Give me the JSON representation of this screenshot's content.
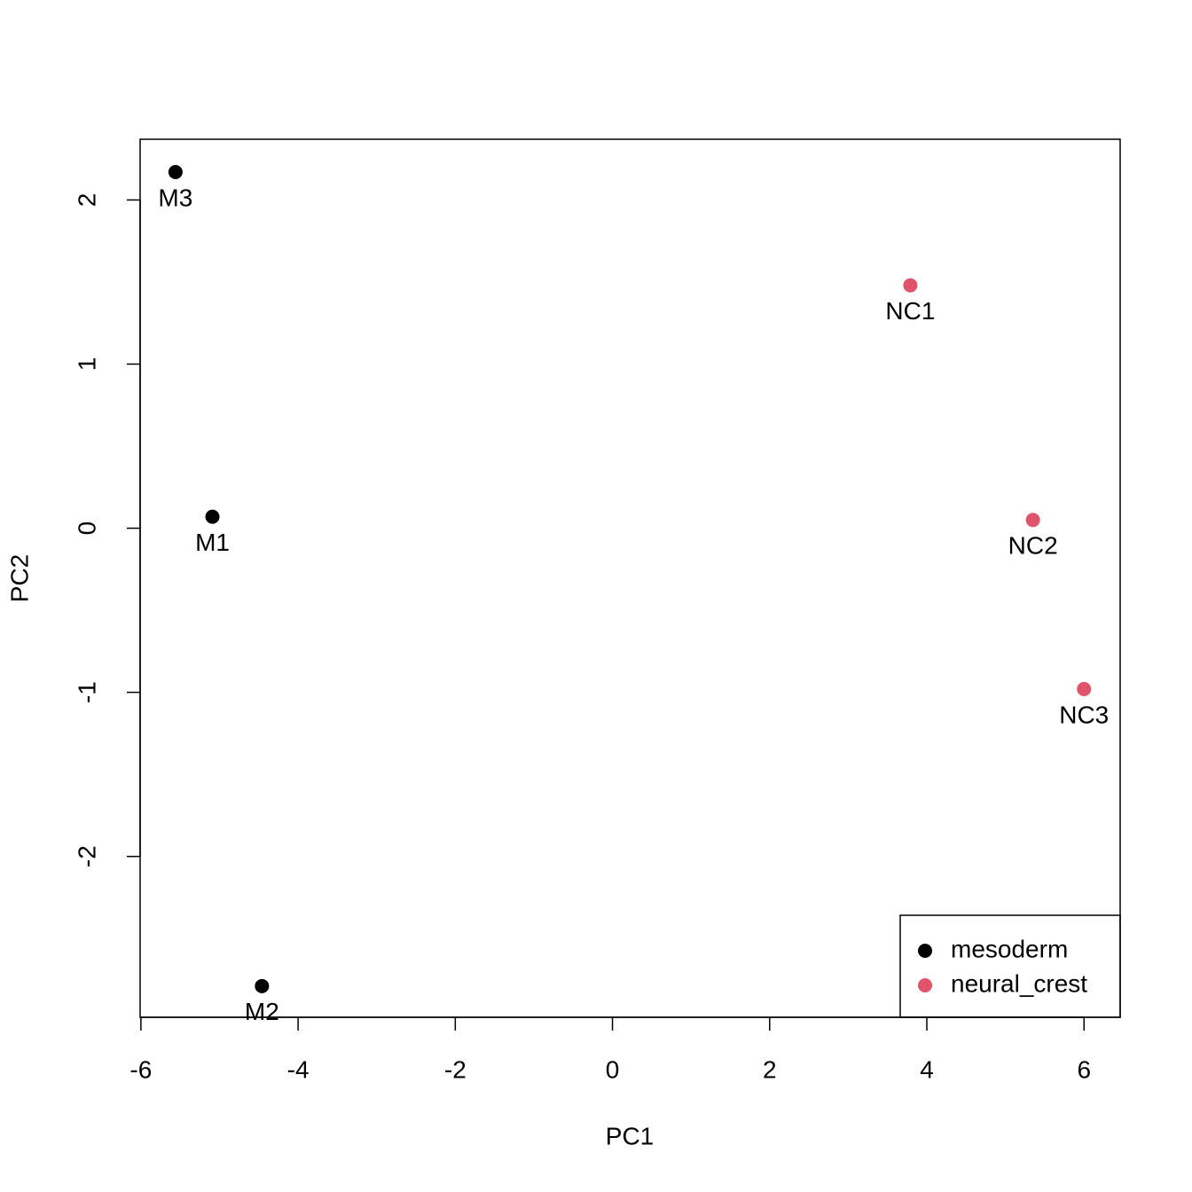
{
  "chart_data": {
    "type": "scatter",
    "xlabel": "PC1",
    "ylabel": "PC2",
    "xlim": [
      -6.01,
      6.46
    ],
    "ylim": [
      -2.98,
      2.37
    ],
    "xticks": [
      -6,
      -4,
      -2,
      0,
      2,
      4,
      6
    ],
    "yticks": [
      -2,
      -1,
      0,
      1,
      2
    ],
    "legend_position": "bottom-right",
    "series": [
      {
        "name": "mesoderm",
        "color": "#000000",
        "x": [
          -5.09,
          -4.46,
          -5.56
        ],
        "values": [
          0.07,
          -2.79,
          2.17
        ],
        "labels": [
          "M1",
          "M2",
          "M3"
        ]
      },
      {
        "name": "neural_crest",
        "color": "#DF536B",
        "x": [
          3.79,
          5.35,
          6.0
        ],
        "values": [
          1.48,
          0.05,
          -0.98
        ],
        "labels": [
          "NC1",
          "NC2",
          "NC3"
        ]
      }
    ]
  }
}
